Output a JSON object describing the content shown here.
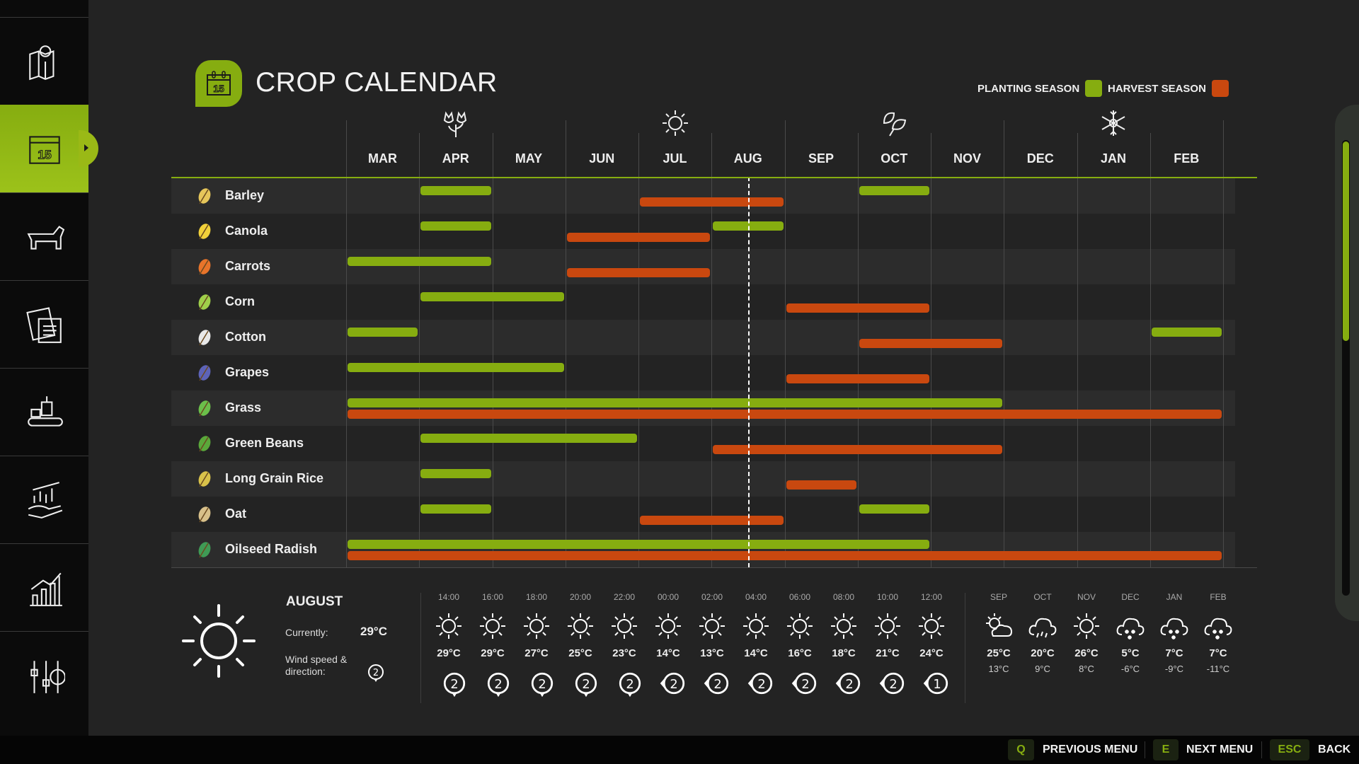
{
  "sidebar": {
    "items": [
      {
        "icon": "map-icon"
      },
      {
        "icon": "calendar-icon",
        "label": "15",
        "active": true
      },
      {
        "icon": "animals-icon"
      },
      {
        "icon": "contracts-icon"
      },
      {
        "icon": "production-icon"
      },
      {
        "icon": "finances-icon"
      },
      {
        "icon": "statistics-icon"
      },
      {
        "icon": "settings-icon"
      }
    ]
  },
  "header": {
    "title": "CROP CALENDAR",
    "icon_label": "15"
  },
  "legend": {
    "planting": "PLANTING SEASON",
    "harvest": "HARVEST SEASON"
  },
  "colors": {
    "accent": "#86ad10",
    "planting": "#86ad10",
    "harvest": "#c9480f"
  },
  "months": [
    "MAR",
    "APR",
    "MAY",
    "JUN",
    "JUL",
    "AUG",
    "SEP",
    "OCT",
    "NOV",
    "DEC",
    "JAN",
    "FEB"
  ],
  "seasons": [
    {
      "name": "spring",
      "icon": "flower-icon",
      "month": "APR"
    },
    {
      "name": "summer",
      "icon": "sun-icon",
      "month": "JUL"
    },
    {
      "name": "autumn",
      "icon": "leaves-icon",
      "month": "OCT"
    },
    {
      "name": "winter",
      "icon": "snowflake-icon",
      "month": "JAN"
    }
  ],
  "current_date_month_fraction": {
    "month": "AUG",
    "fraction": 0.5
  },
  "crops": [
    {
      "name": "Barley",
      "color": "#e6c65a",
      "planting": [
        [
          "APR",
          "APR"
        ],
        [
          "OCT",
          "OCT"
        ]
      ],
      "harvest": [
        [
          "JUL",
          "AUG"
        ]
      ]
    },
    {
      "name": "Canola",
      "color": "#f2d13a",
      "planting": [
        [
          "APR",
          "APR"
        ],
        [
          "AUG",
          "AUG"
        ]
      ],
      "harvest": [
        [
          "JUN",
          "JUL"
        ]
      ]
    },
    {
      "name": "Carrots",
      "color": "#e8742a",
      "planting": [
        [
          "MAR",
          "APR"
        ]
      ],
      "harvest": [
        [
          "JUN",
          "JUL"
        ]
      ]
    },
    {
      "name": "Corn",
      "color": "#9fcf4a",
      "planting": [
        [
          "APR",
          "MAY"
        ]
      ],
      "harvest": [
        [
          "SEP",
          "OCT"
        ]
      ]
    },
    {
      "name": "Cotton",
      "color": "#e8e8e8",
      "planting": [
        [
          "MAR",
          "MAR"
        ],
        [
          "FEB",
          "FEB"
        ]
      ],
      "harvest": [
        [
          "OCT",
          "NOV"
        ]
      ]
    },
    {
      "name": "Grapes",
      "color": "#5d63b8",
      "planting": [
        [
          "MAR",
          "MAY"
        ]
      ],
      "harvest": [
        [
          "SEP",
          "OCT"
        ]
      ]
    },
    {
      "name": "Grass",
      "color": "#6bbf4a",
      "planting": [
        [
          "MAR",
          "NOV"
        ]
      ],
      "harvest": [
        [
          "MAR",
          "FEB"
        ]
      ]
    },
    {
      "name": "Green Beans",
      "color": "#5aa83a",
      "planting": [
        [
          "APR",
          "JUN"
        ]
      ],
      "harvest": [
        [
          "AUG",
          "NOV"
        ]
      ]
    },
    {
      "name": "Long Grain Rice",
      "color": "#d9c24a",
      "planting": [
        [
          "APR",
          "APR"
        ]
      ],
      "harvest": [
        [
          "SEP",
          "SEP"
        ]
      ]
    },
    {
      "name": "Oat",
      "color": "#d8c08a",
      "planting": [
        [
          "APR",
          "APR"
        ],
        [
          "OCT",
          "OCT"
        ]
      ],
      "harvest": [
        [
          "JUL",
          "AUG"
        ]
      ]
    },
    {
      "name": "Oilseed Radish",
      "color": "#3f9a55",
      "planting": [
        [
          "MAR",
          "OCT"
        ]
      ],
      "harvest": [
        [
          "MAR",
          "FEB"
        ]
      ]
    }
  ],
  "weather": {
    "month": "AUGUST",
    "current_label": "Currently:",
    "current_temp": "29°C",
    "current_icon": "sun-icon",
    "wind_label": "Wind speed & direction:",
    "wind_speed": "2",
    "wind_direction": "south",
    "hourly": [
      {
        "time": "14:00",
        "icon": "sun-icon",
        "temp": "29°C",
        "wind": "2",
        "dir": "south"
      },
      {
        "time": "16:00",
        "icon": "sun-icon",
        "temp": "29°C",
        "wind": "2",
        "dir": "south"
      },
      {
        "time": "18:00",
        "icon": "sun-icon",
        "temp": "27°C",
        "wind": "2",
        "dir": "south"
      },
      {
        "time": "20:00",
        "icon": "sun-icon",
        "temp": "25°C",
        "wind": "2",
        "dir": "south"
      },
      {
        "time": "22:00",
        "icon": "sun-icon",
        "temp": "23°C",
        "wind": "2",
        "dir": "south"
      },
      {
        "time": "00:00",
        "icon": "sun-icon",
        "temp": "14°C",
        "wind": "2",
        "dir": "west"
      },
      {
        "time": "02:00",
        "icon": "sun-icon",
        "temp": "13°C",
        "wind": "2",
        "dir": "west"
      },
      {
        "time": "04:00",
        "icon": "sun-icon",
        "temp": "14°C",
        "wind": "2",
        "dir": "west"
      },
      {
        "time": "06:00",
        "icon": "sun-icon",
        "temp": "16°C",
        "wind": "2",
        "dir": "west"
      },
      {
        "time": "08:00",
        "icon": "sun-icon",
        "temp": "18°C",
        "wind": "2",
        "dir": "west"
      },
      {
        "time": "10:00",
        "icon": "sun-icon",
        "temp": "21°C",
        "wind": "2",
        "dir": "west"
      },
      {
        "time": "12:00",
        "icon": "sun-icon",
        "temp": "24°C",
        "wind": "1",
        "dir": "west"
      }
    ],
    "forecast": [
      {
        "month": "SEP",
        "icon": "partly-cloudy-icon",
        "high": "25°C",
        "low": "13°C"
      },
      {
        "month": "OCT",
        "icon": "rain-icon",
        "high": "20°C",
        "low": "9°C"
      },
      {
        "month": "NOV",
        "icon": "sun-icon",
        "high": "26°C",
        "low": "8°C"
      },
      {
        "month": "DEC",
        "icon": "snow-icon",
        "high": "5°C",
        "low": "-6°C"
      },
      {
        "month": "JAN",
        "icon": "snow-icon",
        "high": "7°C",
        "low": "-9°C"
      },
      {
        "month": "FEB",
        "icon": "snow-icon",
        "high": "7°C",
        "low": "-11°C"
      }
    ]
  },
  "footer": {
    "prev": {
      "key": "Q",
      "label": "PREVIOUS MENU"
    },
    "next": {
      "key": "E",
      "label": "NEXT MENU"
    },
    "back": {
      "key": "ESC",
      "label": "BACK"
    }
  },
  "scroll": {
    "position": 0
  }
}
